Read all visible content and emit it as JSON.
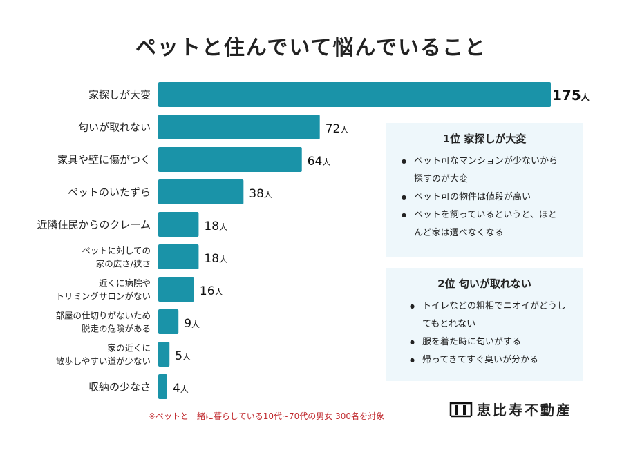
{
  "chart_data": {
    "type": "bar",
    "orientation": "horizontal",
    "title": "ペットと住んでいて悩んでいること",
    "categories": [
      "家探しが大変",
      "匂いが取れない",
      "家具や壁に傷がつく",
      "ペットのいたずら",
      "近隣住民からのクレーム",
      "ペットに対しての\n家の広さ/狭さ",
      "近くに病院や\nトリミングサロンがない",
      "部屋の仕切りがないため\n脱走の危険がある",
      "家の近くに\n散歩しやすい道が少ない",
      "収納の少なさ"
    ],
    "values": [
      175,
      72,
      64,
      38,
      18,
      18,
      16,
      9,
      5,
      4
    ],
    "unit": "人",
    "bar_color": "#1a93a8",
    "xlim": [
      0,
      175
    ]
  },
  "box1": {
    "heading": "1位 家探しが大変",
    "items": [
      "ペット可なマンションが少ないから探すのが大変",
      "ペット可の物件は値段が高い",
      "ペットを飼っているというと、ほとんど家は選べなくなる"
    ]
  },
  "box2": {
    "heading": "2位 匂いが取れない",
    "items": [
      "トイレなどの粗相でニオイがどうしてもとれない",
      "服を着た時に匂いがする",
      "帰ってきてすぐ臭いが分かる"
    ]
  },
  "note": "※ペットと一緒に暮らしている10代~70代の男女 300名を対象",
  "logo": "恵比寿不動産"
}
